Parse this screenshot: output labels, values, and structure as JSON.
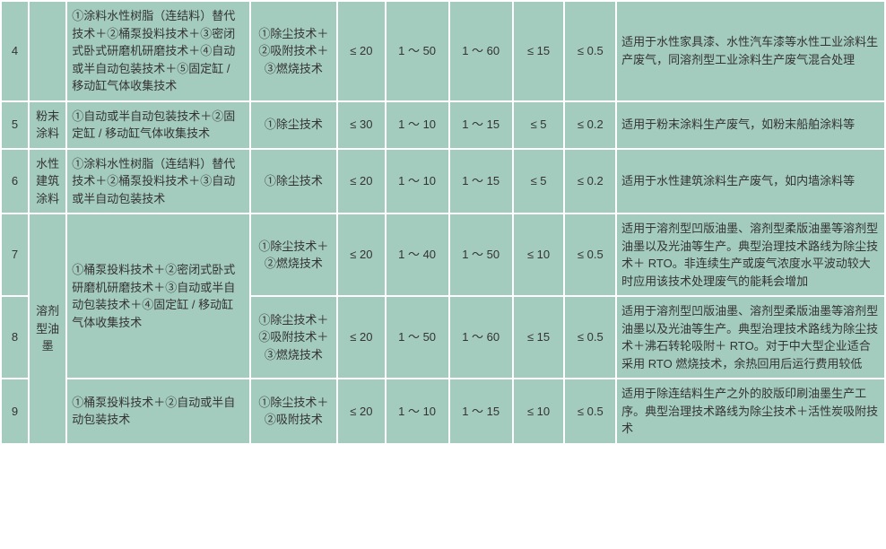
{
  "table": {
    "background_color": "#a4ccbe",
    "border_color": "#ffffff",
    "text_color": "#333333",
    "font_size": 13,
    "columns": {
      "num": 28,
      "category": 38,
      "tech1": 184,
      "tech2": 88,
      "v1": 48,
      "v2": 64,
      "v3": 64,
      "v4": 52,
      "v5": 52,
      "desc": 270
    },
    "rows": [
      {
        "num": "4",
        "category": "",
        "tech1": "①涂料水性树脂（连结料）替代技术＋②桶泵投料技术＋③密闭式卧式研磨机研磨技术＋④自动或半自动包装技术＋⑤固定缸 / 移动缸气体收集技术",
        "tech2": "①除尘技术＋②吸附技术＋③燃烧技术",
        "v1": "≤ 20",
        "v2": "1 ～ 50",
        "v3": "1 ～ 60",
        "v4": "≤ 15",
        "v5": "≤ 0.5",
        "desc": "适用于水性家具漆、水性汽车漆等水性工业涂料生产废气，同溶剂型工业涂料生产废气混合处理"
      },
      {
        "num": "5",
        "category": "粉末涂料",
        "tech1": "①自动或半自动包装技术＋②固定缸 / 移动缸气体收集技术",
        "tech2": "①除尘技术",
        "v1": "≤ 30",
        "v2": "1 ～ 10",
        "v3": "1 ～ 15",
        "v4": "≤ 5",
        "v5": "≤ 0.2",
        "desc": "适用于粉末涂料生产废气，如粉末船舶涂料等"
      },
      {
        "num": "6",
        "category": "水性建筑涂料",
        "tech1": "①涂料水性树脂（连结料）替代技术＋②桶泵投料技术＋③自动或半自动包装技术",
        "tech2": "①除尘技术",
        "v1": "≤ 20",
        "v2": "1 ～ 10",
        "v3": "1 ～ 15",
        "v4": "≤ 5",
        "v5": "≤ 0.2",
        "desc": "适用于水性建筑涂料生产废气，如内墙涂料等"
      },
      {
        "num": "7",
        "category_rowspan_label": "溶剂型油墨",
        "tech1_shared": "①桶泵投料技术＋②密闭式卧式研磨机研磨技术＋③自动或半自动包装技术＋④固定缸 / 移动缸气体收集技术",
        "tech2": "①除尘技术＋②燃烧技术",
        "v1": "≤ 20",
        "v2": "1 ～ 40",
        "v3": "1 ～ 50",
        "v4": "≤ 10",
        "v5": "≤ 0.5",
        "desc": "适用于溶剂型凹版油墨、溶剂型柔版油墨等溶剂型油墨以及光油等生产。典型治理技术路线为除尘技术＋ RTO。非连续生产或废气浓度水平波动较大时应用该技术处理废气的能耗会增加"
      },
      {
        "num": "8",
        "tech2": "①除尘技术＋②吸附技术＋③燃烧技术",
        "v1": "≤ 20",
        "v2": "1 ～ 50",
        "v3": "1 ～ 60",
        "v4": "≤ 15",
        "v5": "≤ 0.5",
        "desc": "适用于溶剂型凹版油墨、溶剂型柔版油墨等溶剂型油墨以及光油等生产。典型治理技术路线为除尘技术＋沸石转轮吸附＋ RTO。对于中大型企业适合采用 RTO 燃烧技术，余热回用后运行费用较低"
      },
      {
        "num": "9",
        "tech1": "①桶泵投料技术＋②自动或半自动包装技术",
        "tech2": "①除尘技术＋②吸附技术",
        "v1": "≤ 20",
        "v2": "1 ～ 10",
        "v3": "1 ～ 15",
        "v4": "≤ 10",
        "v5": "≤ 0.5",
        "desc": "适用于除连结料生产之外的胶版印刷油墨生产工序。典型治理技术路线为除尘技术＋活性炭吸附技术"
      }
    ]
  }
}
